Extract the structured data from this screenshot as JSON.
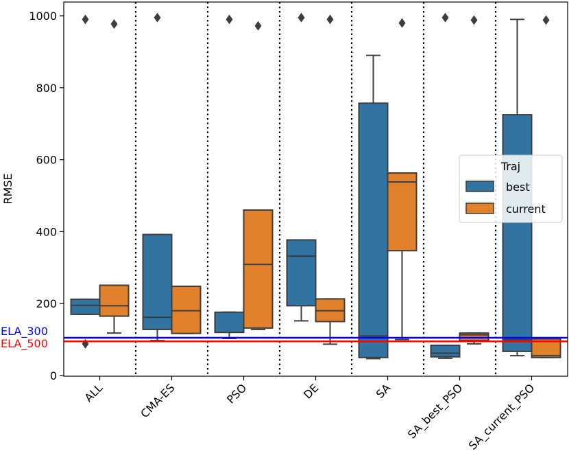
{
  "chart_data": {
    "type": "boxplot",
    "title": "",
    "xlabel": "",
    "ylabel": "RMSE",
    "ylim": [
      -10,
      1045
    ],
    "yticks": [
      0,
      200,
      400,
      600,
      800,
      1000
    ],
    "categories": [
      "ALL",
      "CMA-ES",
      "PSO",
      "DE",
      "SA",
      "SA_best_PSO",
      "SA_current_PSO"
    ],
    "series": [
      {
        "name": "best",
        "color": "#3274a1",
        "boxes": [
          {
            "whislo": 170,
            "q1": 170,
            "med": 195,
            "q3": 212,
            "whishi": 212,
            "fliers": [
              990,
              88
            ]
          },
          {
            "whislo": 97,
            "q1": 128,
            "med": 162,
            "q3": 392,
            "whishi": 392,
            "fliers": [
              995
            ]
          },
          {
            "whislo": 103,
            "q1": 120,
            "med": 120,
            "q3": 176,
            "whishi": 176,
            "fliers": [
              990
            ]
          },
          {
            "whislo": 152,
            "q1": 194,
            "med": 332,
            "q3": 377,
            "whishi": 377,
            "fliers": [
              995
            ]
          },
          {
            "whislo": 47,
            "q1": 50,
            "med": 110,
            "q3": 757,
            "whishi": 890,
            "fliers": []
          },
          {
            "whislo": 48,
            "q1": 52,
            "med": 62,
            "q3": 84,
            "whishi": 84,
            "fliers": [
              995
            ]
          },
          {
            "whislo": 55,
            "q1": 67,
            "med": 100,
            "q3": 725,
            "whishi": 990,
            "fliers": []
          }
        ]
      },
      {
        "name": "current",
        "color": "#e1812c",
        "boxes": [
          {
            "whislo": 118,
            "q1": 165,
            "med": 194,
            "q3": 251,
            "whishi": 251,
            "fliers": [
              977
            ]
          },
          {
            "whislo": 117,
            "q1": 117,
            "med": 180,
            "q3": 248,
            "whishi": 248,
            "fliers": []
          },
          {
            "whislo": 128,
            "q1": 132,
            "med": 309,
            "q3": 460,
            "whishi": 460,
            "fliers": [
              972
            ]
          },
          {
            "whislo": 87,
            "q1": 150,
            "med": 180,
            "q3": 213,
            "whishi": 213,
            "fliers": [
              990
            ]
          },
          {
            "whislo": 100,
            "q1": 347,
            "med": 538,
            "q3": 563,
            "whishi": 563,
            "fliers": [
              980
            ]
          },
          {
            "whislo": 88,
            "q1": 97,
            "med": 113,
            "q3": 118,
            "whishi": 118,
            "fliers": [
              988
            ]
          },
          {
            "whislo": 50,
            "q1": 50,
            "med": 55,
            "q3": 102,
            "whishi": 102,
            "fliers": [
              988
            ]
          }
        ]
      }
    ],
    "hlines": [
      {
        "label": "ELA_300",
        "y": 105,
        "color": "#0000ff"
      },
      {
        "label": "ELA_500",
        "y": 95,
        "color": "#ff0000"
      }
    ],
    "legend": {
      "title": "Traj",
      "placement": "center-right"
    }
  }
}
